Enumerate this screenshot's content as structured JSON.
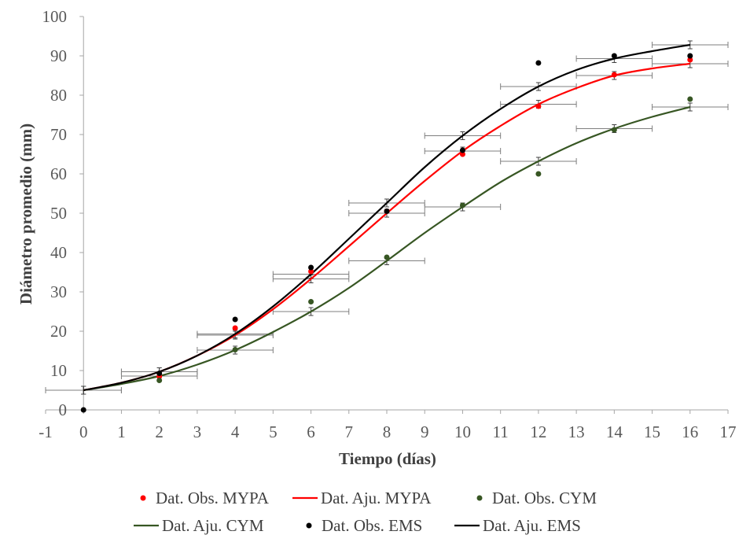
{
  "chart_data": {
    "type": "scatter",
    "title": "",
    "xlabel": "Tiempo (días)",
    "ylabel": "Diámetro promedio (mm)",
    "xlim": [
      -1,
      17
    ],
    "ylim": [
      0,
      100
    ],
    "x_ticks": [
      "-1",
      "0",
      "1",
      "2",
      "3",
      "4",
      "5",
      "6",
      "7",
      "8",
      "9",
      "10",
      "11",
      "12",
      "13",
      "14",
      "15",
      "16",
      "17"
    ],
    "y_ticks": [
      "0",
      "10",
      "20",
      "30",
      "40",
      "50",
      "60",
      "70",
      "80",
      "90",
      "100"
    ],
    "grid": false,
    "legend_position": "bottom",
    "series": [
      {
        "name": "Dat. Obs. MYPA",
        "kind": "points",
        "color": "#ff0000",
        "x": [
          2,
          4,
          6,
          8,
          10,
          12,
          14,
          16
        ],
        "y": [
          8.5,
          20.8,
          35.2,
          50.5,
          65.0,
          77.2,
          85.2,
          89.0
        ]
      },
      {
        "name": "Dat. Aju. MYPA",
        "kind": "line",
        "color": "#ff0000",
        "x": [
          0,
          1,
          2,
          3,
          4,
          5,
          6,
          7,
          8,
          9,
          10,
          11,
          12,
          13,
          14,
          15,
          16
        ],
        "y": [
          5.0,
          6.9,
          9.7,
          13.8,
          19.0,
          25.6,
          33.3,
          41.6,
          50.0,
          58.2,
          65.8,
          72.2,
          77.7,
          81.8,
          85.0,
          86.8,
          88.0
        ],
        "error_x": 1.0,
        "error_y": 1.0
      },
      {
        "name": "Dat. Obs. CYM",
        "kind": "points",
        "color": "#375623",
        "x": [
          2,
          4,
          6,
          8,
          10,
          12,
          14,
          16
        ],
        "y": [
          7.5,
          15.3,
          27.5,
          38.8,
          52.0,
          60.0,
          71.2,
          79.0
        ]
      },
      {
        "name": "Dat. Aju. CYM",
        "kind": "line",
        "color": "#375623",
        "x": [
          0,
          1,
          2,
          3,
          4,
          5,
          6,
          7,
          8,
          9,
          10,
          11,
          12,
          13,
          14,
          15,
          16
        ],
        "y": [
          5.0,
          6.6,
          8.6,
          11.5,
          15.2,
          19.8,
          25.0,
          31.0,
          37.9,
          45.0,
          51.6,
          57.9,
          63.2,
          67.8,
          71.5,
          74.5,
          77.0
        ],
        "error_x": 1.0,
        "error_y": 1.0
      },
      {
        "name": "Dat. Obs. EMS",
        "kind": "points",
        "color": "#000000",
        "x": [
          0,
          2,
          4,
          6,
          8,
          10,
          12,
          14,
          16
        ],
        "y": [
          0.0,
          9.3,
          23.0,
          36.2,
          50.5,
          66.0,
          88.2,
          90.0,
          90.0
        ]
      },
      {
        "name": "Dat. Aju. EMS",
        "kind": "line",
        "color": "#000000",
        "x": [
          0,
          1,
          2,
          3,
          4,
          5,
          6,
          7,
          8,
          9,
          10,
          11,
          12,
          13,
          14,
          15,
          16
        ],
        "y": [
          5.0,
          6.9,
          9.7,
          13.8,
          19.3,
          26.3,
          34.5,
          43.5,
          52.6,
          61.7,
          69.7,
          76.5,
          82.2,
          86.4,
          89.3,
          91.2,
          92.8
        ],
        "error_x": 1.0,
        "error_y": 1.0
      }
    ]
  }
}
